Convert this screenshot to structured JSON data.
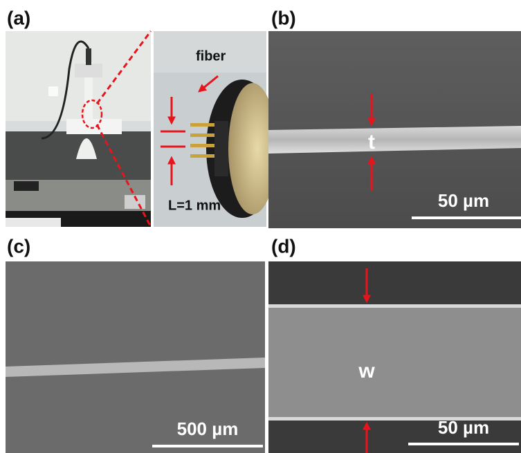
{
  "panels": [
    {
      "label": "(a)",
      "annotations": [
        "fiber",
        "L=1 mm"
      ]
    },
    {
      "label": "(b)",
      "annotations": [
        "t"
      ],
      "scale_bar": "50 µm"
    },
    {
      "label": "(c)",
      "scale_bar": "500 µm"
    },
    {
      "label": "(d)",
      "annotations": [
        "w"
      ],
      "scale_bar": "50 µm"
    }
  ]
}
